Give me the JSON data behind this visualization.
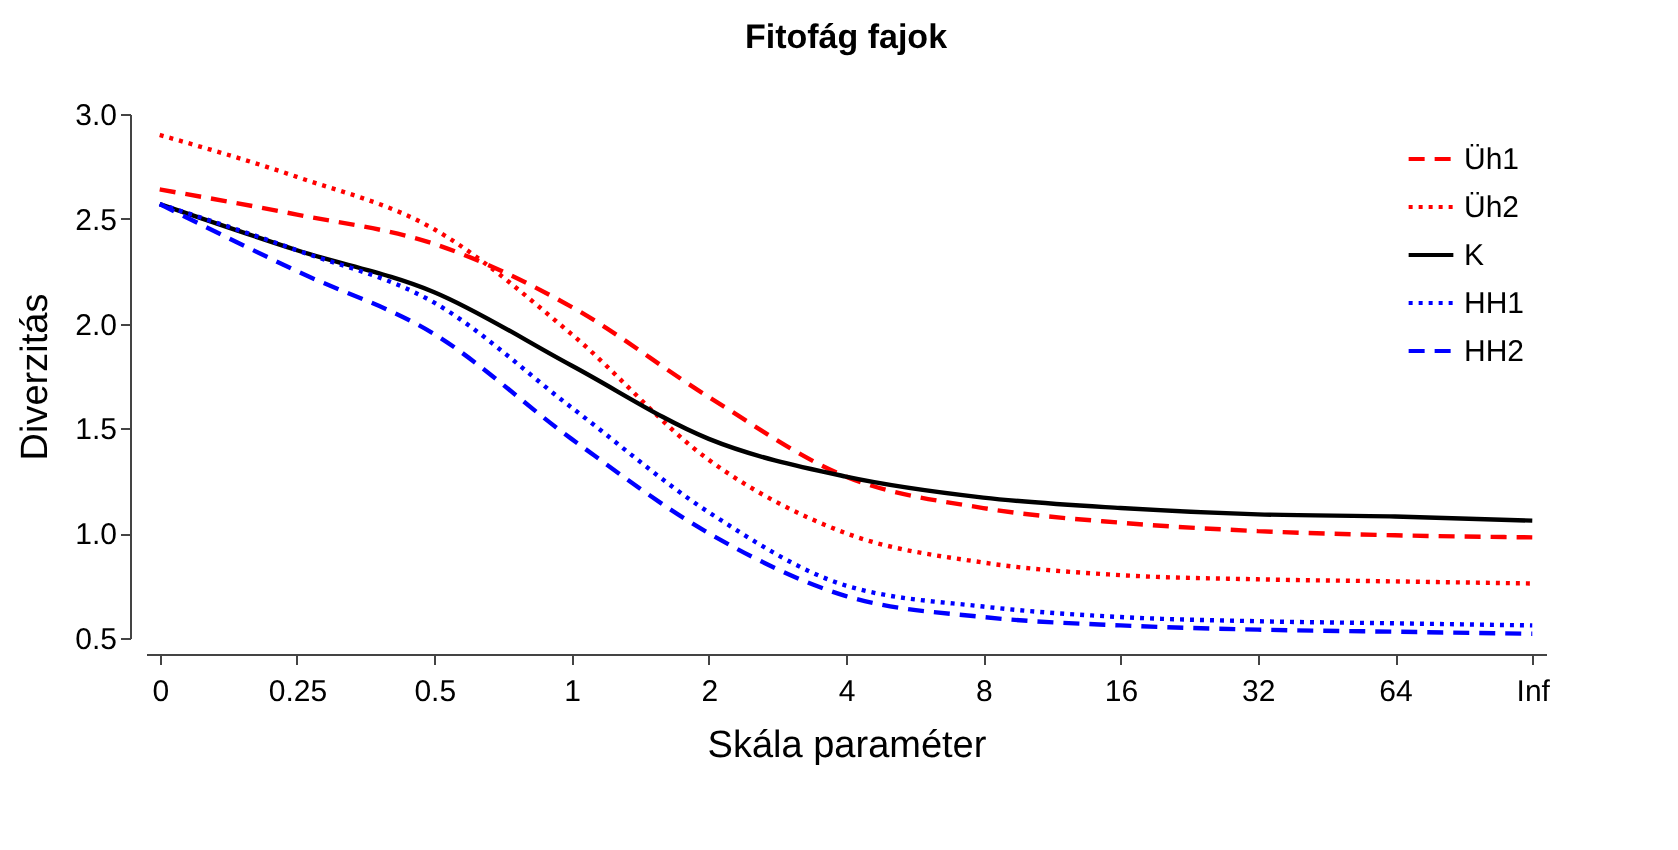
{
  "chart_data": {
    "type": "line",
    "title": "Fitofág fajok",
    "xlabel": "Skála paraméter",
    "ylabel": "Diverzitás",
    "categories": [
      "0",
      "0.25",
      "0.5",
      "1",
      "2",
      "4",
      "8",
      "16",
      "32",
      "64",
      "Inf"
    ],
    "series": [
      {
        "name": "Üh1",
        "color": "#ff0000",
        "line_style": "dashed",
        "values": [
          2.64,
          2.52,
          2.38,
          2.08,
          1.65,
          1.27,
          1.12,
          1.05,
          1.01,
          0.99,
          0.98
        ]
      },
      {
        "name": "Üh2",
        "color": "#ff0000",
        "line_style": "dotted",
        "values": [
          2.9,
          2.7,
          2.45,
          1.95,
          1.35,
          1.0,
          0.86,
          0.8,
          0.78,
          0.77,
          0.76
        ]
      },
      {
        "name": "K",
        "color": "#000000",
        "line_style": "solid",
        "values": [
          2.57,
          2.35,
          2.15,
          1.8,
          1.45,
          1.27,
          1.17,
          1.12,
          1.09,
          1.08,
          1.06
        ]
      },
      {
        "name": "HH1",
        "color": "#0000ff",
        "line_style": "dotted",
        "values": [
          2.57,
          2.35,
          2.1,
          1.6,
          1.1,
          0.75,
          0.65,
          0.6,
          0.58,
          0.57,
          0.56
        ]
      },
      {
        "name": "HH2",
        "color": "#0000ff",
        "line_style": "dashed",
        "values": [
          2.57,
          2.25,
          1.95,
          1.45,
          1.0,
          0.7,
          0.6,
          0.56,
          0.54,
          0.53,
          0.52
        ]
      }
    ],
    "ylim": [
      0.5,
      3.0
    ],
    "yticks": [
      0.5,
      {
        "value": 1,
        "label": "1.0"
      },
      1.5,
      {
        "value": 2,
        "label": "2.0"
      },
      2.5,
      {
        "value": 3,
        "label": "3.0"
      }
    ],
    "grid": false,
    "legend": "top right"
  }
}
